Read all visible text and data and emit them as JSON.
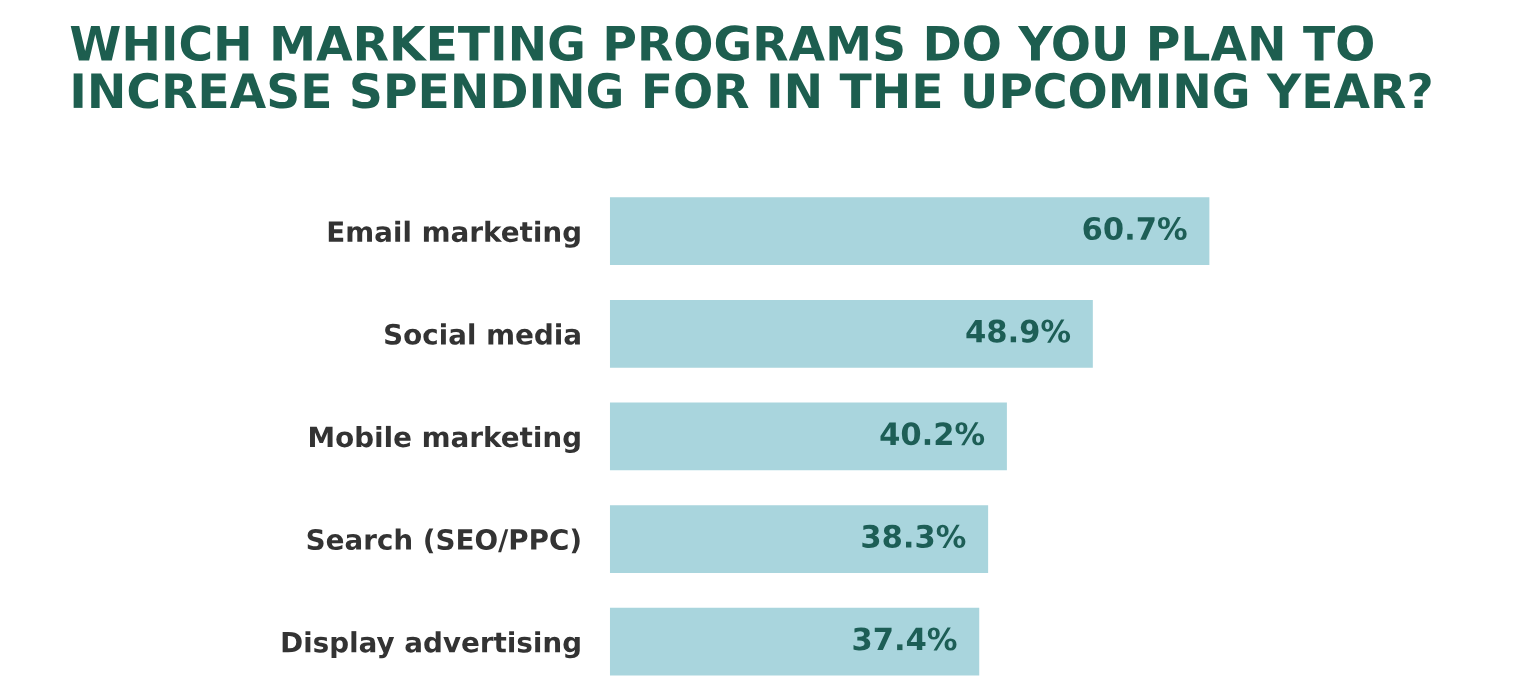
{
  "chart_data": {
    "type": "bar",
    "orientation": "horizontal",
    "title": "WHICH MARKETING PROGRAMS DO YOU PLAN TO\nINCREASE SPENDING FOR IN THE UPCOMING YEAR?",
    "categories": [
      "Email marketing",
      "Social media",
      "Mobile marketing",
      "Search (SEO/PPC)",
      "Display advertising"
    ],
    "values": [
      60.7,
      48.9,
      40.2,
      38.3,
      37.4
    ],
    "value_labels": [
      "60.7%",
      "48.9%",
      "40.2%",
      "38.3%",
      "37.4%"
    ],
    "color": "#a9d5dd",
    "grid": false,
    "legend": false
  }
}
